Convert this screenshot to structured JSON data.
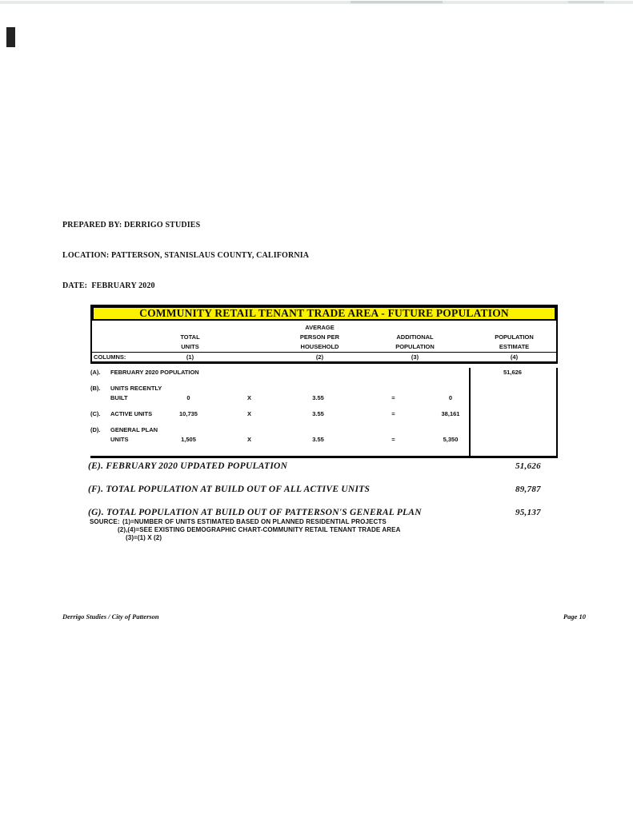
{
  "doc_header": {
    "line1": "PREPARED BY: DERRIGO STUDIES",
    "line2": "LOCATION: PATTERSON, STANISLAUS COUNTY, CALIFORNIA",
    "line3": "DATE:  FEBRUARY 2020"
  },
  "table": {
    "title": "COMMUNITY RETAIL TENANT TRADE AREA - FUTURE POPULATION",
    "col_headers": {
      "avg": "AVERAGE",
      "c1_l1": "TOTAL",
      "c1_l2": "UNITS",
      "c2_l1": "PERSON PER",
      "c2_l2": "HOUSEHOLD",
      "c3_l1": "ADDITIONAL",
      "c3_l2": "POPULATION",
      "c4_l1": "POPULATION",
      "c4_l2": "ESTIMATE"
    },
    "columns_label": "COLUMNS:",
    "ticks": [
      "(1)",
      "(2)",
      "(3)",
      "(4)"
    ],
    "rows": [
      {
        "prefix": "(A).",
        "label1": "FEBRUARY 2020 POPULATION",
        "label2": "",
        "units": "",
        "x": "",
        "pph": "",
        "eq": "",
        "add": "",
        "est": "51,626"
      },
      {
        "prefix": "(B).",
        "label1": "UNITS RECENTLY",
        "label2": "BUILT",
        "units": "0",
        "x": "X",
        "pph": "3.55",
        "eq": "=",
        "add": "0",
        "est": ""
      },
      {
        "prefix": "(C).",
        "label1": "ACTIVE UNITS",
        "label2": "",
        "units": "10,735",
        "x": "X",
        "pph": "3.55",
        "eq": "=",
        "add": "38,161",
        "est": ""
      },
      {
        "prefix": "(D).",
        "label1": "GENERAL PLAN",
        "label2": "UNITS",
        "units": "1,505",
        "x": "X",
        "pph": "3.55",
        "eq": "=",
        "add": "5,350",
        "est": ""
      }
    ],
    "summary": [
      {
        "label": "(E). FEBRUARY 2020 UPDATED POPULATION",
        "value": "51,626"
      },
      {
        "label": "(F). TOTAL POPULATION AT BUILD OUT OF ALL ACTIVE UNITS",
        "value": "89,787"
      },
      {
        "label": "(G). TOTAL POPULATION AT BUILD OUT OF PATTERSON'S GENERAL PLAN",
        "value": "95,137"
      }
    ]
  },
  "source": {
    "label": "SOURCE:",
    "line1": "(1)=NUMBER OF UNITS ESTIMATED BASED ON PLANNED RESIDENTIAL PROJECTS",
    "line2": "(2),(4)=SEE EXISTING DEMOGRAPHIC CHART-COMMUNITY RETAIL TENANT TRADE AREA",
    "line3": "(3)=(1) X (2)"
  },
  "footer": {
    "left": "Derrigo Studies / City of Patterson",
    "right": "Page 10"
  },
  "colors": {
    "highlight_yellow": "#fcf200",
    "ink": "#111111"
  }
}
